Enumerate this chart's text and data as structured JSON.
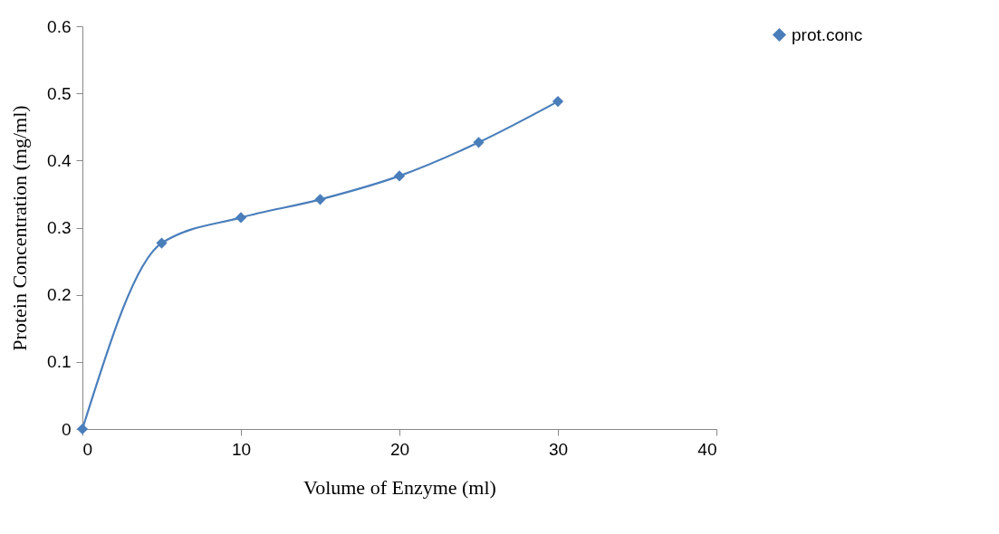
{
  "chart_data": {
    "type": "line",
    "xlabel": "Volume of Enzyme (ml)",
    "ylabel": "Protein Concentration (mg/ml)",
    "x": [
      0,
      5,
      10,
      15,
      20,
      25,
      30
    ],
    "series": [
      {
        "name": "prot.conc",
        "color": "#4a7ebb",
        "values": [
          0,
          0.277,
          0.315,
          0.342,
          0.377,
          0.427,
          0.488
        ]
      }
    ],
    "xlim": [
      0,
      40
    ],
    "xticks": [
      0,
      10,
      20,
      30,
      40
    ],
    "ylim": [
      0,
      0.6
    ],
    "yticks": [
      0,
      0.1,
      0.2,
      0.3,
      0.4,
      0.5,
      0.6
    ],
    "grid": false,
    "legend": "right",
    "marker": "diamond",
    "line_style": "solid"
  }
}
